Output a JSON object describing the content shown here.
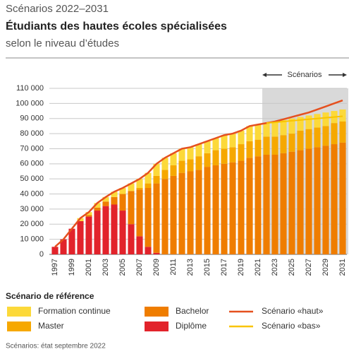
{
  "chart_data": {
    "type": "bar",
    "supertitle": "Scénarios 2022–2031",
    "title": "Étudiants des hautes écoles spécialisées",
    "subtitle": "selon le niveau d’études",
    "annotation": "Scénarios",
    "legend_title": "Scénario de référence",
    "note": "Scénarios: état septembre 2022",
    "stacked": true,
    "grid": true,
    "categories": [
      "1997",
      null,
      "1999",
      null,
      "2001",
      null,
      "2003",
      null,
      "2005",
      null,
      "2007",
      null,
      "2009",
      null,
      "2011",
      null,
      "2013",
      null,
      "2015",
      null,
      "2017",
      null,
      "2019",
      null,
      "2021",
      null,
      "2023",
      null,
      "2025",
      null,
      "2027",
      null,
      "2029",
      null,
      "2031"
    ],
    "ylim": [
      0,
      110000
    ],
    "yticks": [
      {
        "value": 0,
        "label": "0"
      },
      {
        "value": 10000,
        "label": "10 000"
      },
      {
        "value": 20000,
        "label": "20 000"
      },
      {
        "value": 30000,
        "label": "30 000"
      },
      {
        "value": 40000,
        "label": "40 000"
      },
      {
        "value": 50000,
        "label": "50 000"
      },
      {
        "value": 60000,
        "label": "60 000"
      },
      {
        "value": 70000,
        "label": "70 000"
      },
      {
        "value": 80000,
        "label": "80 000"
      },
      {
        "value": 90000,
        "label": "90 000"
      },
      {
        "value": 100000,
        "label": "100 000"
      },
      {
        "value": 110000,
        "label": "110 000"
      }
    ],
    "series": [
      {
        "name": "Diplôme",
        "color": "#e2232b",
        "kind": "bar",
        "values": [
          5000,
          10000,
          17000,
          22000,
          25000,
          29000,
          32000,
          33000,
          29000,
          20000,
          12000,
          5000,
          1000,
          0,
          0,
          0,
          0,
          0,
          0,
          0,
          0,
          0,
          0,
          0,
          0,
          0,
          0,
          0,
          0,
          0,
          0,
          0,
          0,
          0,
          0
        ]
      },
      {
        "name": "Bachelor",
        "color": "#ef7d00",
        "kind": "bar",
        "values": [
          0,
          0,
          0,
          0,
          1000,
          2000,
          3000,
          5000,
          11000,
          22000,
          31000,
          39000,
          46000,
          50000,
          52000,
          54000,
          55000,
          56000,
          58000,
          59000,
          60000,
          61000,
          62000,
          64000,
          65000,
          66000,
          66000,
          67000,
          68000,
          69000,
          70000,
          71000,
          72000,
          73000,
          74000
        ]
      },
      {
        "name": "Master",
        "color": "#f6a800",
        "kind": "bar",
        "values": [
          0,
          0,
          0,
          0,
          0,
          0,
          0,
          0,
          0,
          0,
          1000,
          3000,
          5000,
          6000,
          7000,
          8000,
          8000,
          9000,
          9000,
          10000,
          10000,
          10000,
          11000,
          11000,
          11000,
          12000,
          12000,
          12000,
          12000,
          13000,
          13000,
          13000,
          13000,
          14000,
          14000
        ]
      },
      {
        "name": "Formation continue",
        "color": "#fcd93a",
        "kind": "bar",
        "values": [
          0,
          0,
          0,
          2000,
          2000,
          3000,
          3000,
          3500,
          4000,
          5000,
          6000,
          7000,
          8000,
          8000,
          8000,
          8000,
          8000,
          8000,
          8000,
          8000,
          9000,
          9000,
          9000,
          10000,
          10000,
          9000,
          10000,
          10000,
          10000,
          9000,
          9000,
          9000,
          9000,
          8000,
          8000
        ]
      },
      {
        "name": "Scénario «haut»",
        "color": "#e5501f",
        "kind": "line",
        "values": [
          5000,
          10000,
          17000,
          24000,
          28000,
          34000,
          38000,
          41500,
          44000,
          47000,
          50000,
          54000,
          60000,
          64000,
          67000,
          70000,
          71000,
          73000,
          75000,
          77000,
          79000,
          80000,
          82000,
          85000,
          86000,
          87000,
          88000,
          89500,
          91000,
          92500,
          94000,
          96000,
          98000,
          100000,
          102000
        ]
      },
      {
        "name": "Scénario «bas»",
        "color": "#f9c400",
        "kind": "line",
        "values": [
          null,
          null,
          null,
          null,
          null,
          null,
          null,
          null,
          null,
          null,
          null,
          null,
          null,
          null,
          null,
          null,
          null,
          null,
          null,
          null,
          null,
          null,
          null,
          null,
          null,
          87000,
          87500,
          88000,
          88500,
          89000,
          89500,
          90000,
          90500,
          91000,
          91500
        ]
      }
    ]
  }
}
